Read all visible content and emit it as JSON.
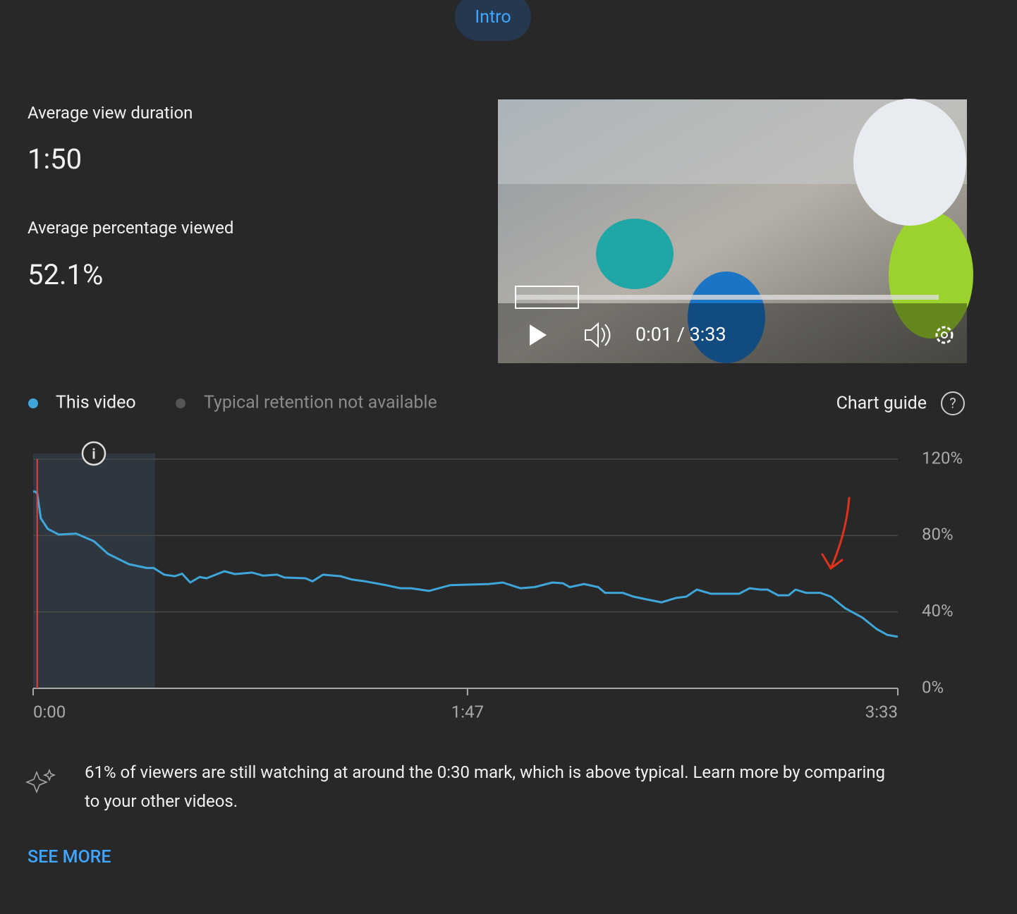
{
  "tab": "Intro",
  "stats": [
    {
      "label": "Average view duration",
      "value": "1:50"
    },
    {
      "label": "Average percentage viewed",
      "value": "52.1%"
    }
  ],
  "player": {
    "time": "0:01 / 3:33"
  },
  "chart_data": {
    "type": "line",
    "x": [
      0,
      0.5,
      1.0,
      1.9,
      3.6,
      6.3,
      10.6,
      15,
      18.4,
      23.6,
      28,
      29.7,
      32.3,
      34.9,
      36.7,
      38.7,
      41,
      42.7,
      47.1,
      49.7,
      54,
      56.6,
      60.1,
      61.9,
      67.1,
      68.8,
      71.4,
      75.7,
      78.4,
      81.8,
      87,
      90.5,
      93.1,
      97.5,
      102.7,
      112.2,
      115.7,
      120,
      123.5,
      127.9,
      130.5,
      132.2,
      135.7,
      139.2,
      140.9,
      145.2,
      147.9,
      151.3,
      154.8,
      158.3,
      160.9,
      163.5,
      167,
      173.9,
      176.5,
      179.1,
      180.9,
      183.5,
      186.1,
      187.8,
      190.4,
      193.9,
      196.5,
      200,
      204.3,
      207.8,
      210.4,
      213
    ],
    "series": [
      {
        "name": "This video",
        "color": "#3ea6d8",
        "values": [
          103,
          103,
          102,
          89,
          83.5,
          80.5,
          81,
          77,
          70.5,
          65,
          63,
          63,
          59.5,
          58.7,
          60,
          55.4,
          58.3,
          57.6,
          61.3,
          59.8,
          60.6,
          59,
          59.5,
          58,
          57.6,
          56,
          59.5,
          58.7,
          57,
          56,
          54,
          52.4,
          52.4,
          51,
          54,
          54.6,
          55.4,
          52.4,
          53,
          55.4,
          55,
          53,
          54.6,
          53,
          50,
          50,
          48,
          46.5,
          45,
          47.3,
          48,
          51.7,
          49.5,
          49.5,
          52.4,
          51.7,
          51.7,
          48.7,
          48.7,
          51.7,
          50,
          50,
          48,
          42,
          37,
          31,
          28,
          27
        ]
      }
    ],
    "legend_note": "Typical retention not available",
    "chart_guide": "Chart guide",
    "xlim": [
      0,
      213
    ],
    "xticks": [
      {
        "value": 0,
        "label": "0:00"
      },
      {
        "value": 107,
        "label": "1:47"
      },
      {
        "value": 213,
        "label": "3:33"
      }
    ],
    "ylim": [
      0,
      120
    ],
    "yticks": [
      {
        "value": 0,
        "label": "0%"
      },
      {
        "value": 40,
        "label": "40%"
      },
      {
        "value": 80,
        "label": "80%"
      },
      {
        "value": 120,
        "label": "120%"
      }
    ],
    "grid": true,
    "highlight_range": [
      0,
      30
    ],
    "playhead": 1
  },
  "insight": "61% of viewers are still watching at around the 0:30 mark, which is above typical. Learn more by comparing to your other videos.",
  "see_more": "SEE MORE"
}
